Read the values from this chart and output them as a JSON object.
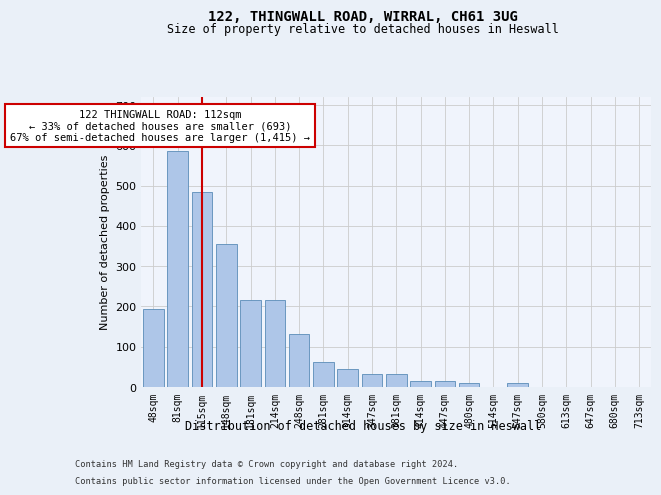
{
  "title1": "122, THINGWALL ROAD, WIRRAL, CH61 3UG",
  "title2": "Size of property relative to detached houses in Heswall",
  "xlabel": "Distribution of detached houses by size in Heswall",
  "ylabel": "Number of detached properties",
  "categories": [
    "48sqm",
    "81sqm",
    "115sqm",
    "148sqm",
    "181sqm",
    "214sqm",
    "248sqm",
    "281sqm",
    "314sqm",
    "347sqm",
    "381sqm",
    "414sqm",
    "447sqm",
    "480sqm",
    "514sqm",
    "547sqm",
    "580sqm",
    "613sqm",
    "647sqm",
    "680sqm",
    "713sqm"
  ],
  "values": [
    193,
    585,
    485,
    355,
    215,
    215,
    132,
    63,
    45,
    32,
    32,
    15,
    15,
    10,
    0,
    10,
    0,
    0,
    0,
    0,
    0
  ],
  "bar_color": "#aec6e8",
  "bar_edge_color": "#5b8db8",
  "vline_x": 2,
  "vline_color": "#cc0000",
  "annotation_text": "122 THINGWALL ROAD: 112sqm\n← 33% of detached houses are smaller (693)\n67% of semi-detached houses are larger (1,415) →",
  "annotation_box_color": "#ffffff",
  "annotation_box_edge_color": "#cc0000",
  "ylim": [
    0,
    720
  ],
  "yticks": [
    0,
    100,
    200,
    300,
    400,
    500,
    600,
    700
  ],
  "footer1": "Contains HM Land Registry data © Crown copyright and database right 2024.",
  "footer2": "Contains public sector information licensed under the Open Government Licence v3.0.",
  "bg_color": "#eaf0f8",
  "plot_bg_color": "#f0f4fc"
}
